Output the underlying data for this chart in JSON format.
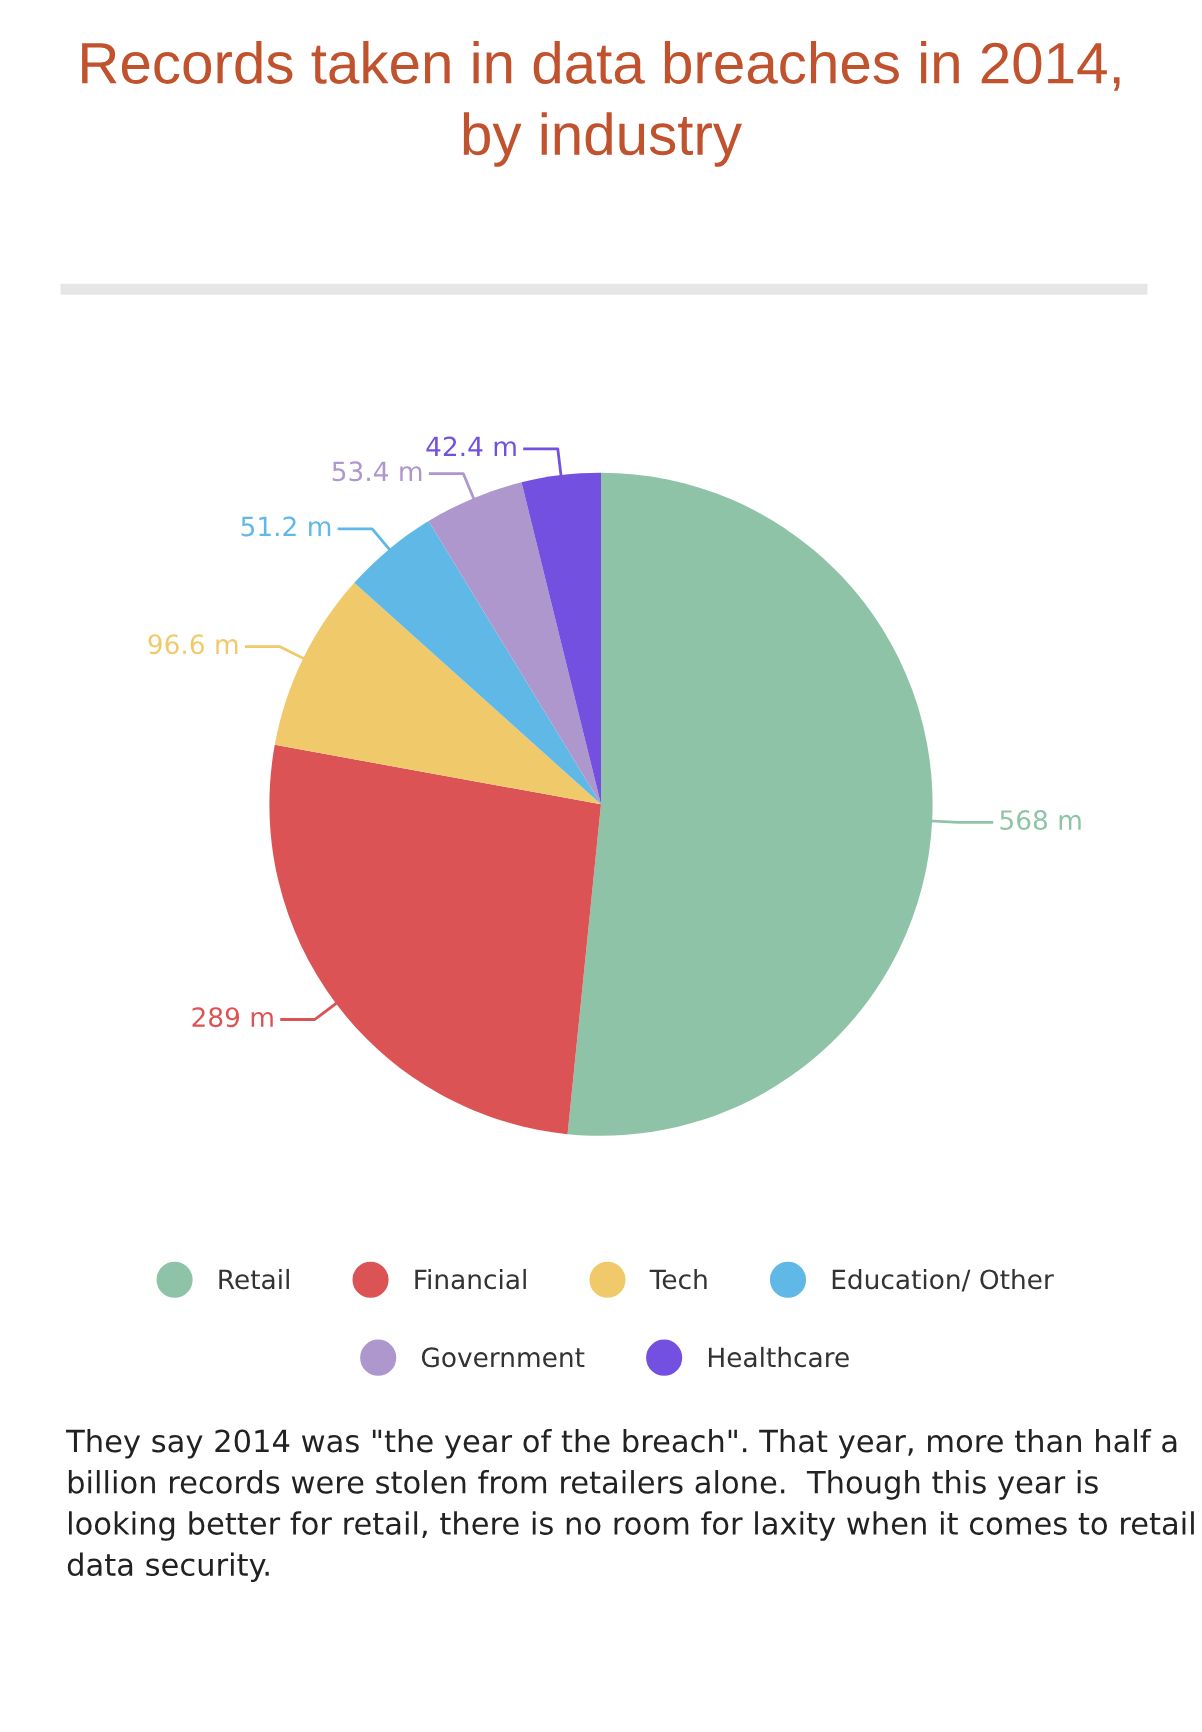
{
  "chart_data": {
    "type": "pie",
    "title": "Records taken in data breaches in 2014,\nby industry",
    "categories": [
      "Retail",
      "Financial",
      "Tech",
      "Education/ Other",
      "Government",
      "Healthcare"
    ],
    "values": [
      568,
      289,
      96.6,
      51.2,
      53.4,
      42.4
    ],
    "value_labels": [
      "568 m",
      "289 m",
      "96.6 m",
      "51.2 m",
      "53.4 m",
      "42.4 m"
    ],
    "colors": [
      "#8fc3a8",
      "#dc5356",
      "#f0ca6a",
      "#5fb8e6",
      "#ad97cc",
      "#7450e0"
    ],
    "legend": "bottom",
    "annotations": [
      "They say 2014 was \"the year of the breach\". That year, more than half a billion records were stolen from retailers alone.  Though this year is looking better for retail, there is no room for laxity when it comes to retail data security."
    ]
  }
}
